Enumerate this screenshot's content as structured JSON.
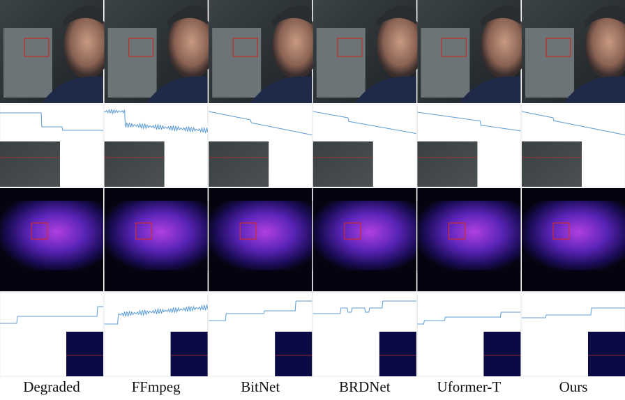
{
  "captions": [
    "Degraded",
    "FFmpeg",
    "BitNet",
    "BRDNet",
    "Uformer-T",
    "Ours"
  ]
}
